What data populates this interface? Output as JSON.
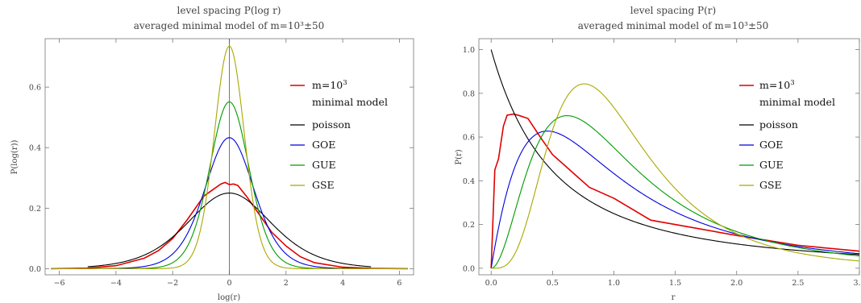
{
  "chart_data": [
    {
      "type": "line",
      "title": "level spacing P(log r)",
      "subtitle": "averaged minimal model of m=10³±50",
      "xlabel": "log(r)",
      "ylabel": "P(log(r))",
      "xlim": [
        -6.5,
        6.5
      ],
      "ylim": [
        -0.02,
        0.76
      ],
      "xticks": [
        "-6",
        "-4",
        "-2",
        "0",
        "2",
        "4",
        "6"
      ],
      "yticks": [
        "0.0",
        "0.2",
        "0.4",
        "0.6"
      ],
      "legend_position": "right",
      "legend": {
        "m_line1": "m=10",
        "m_sup": "3",
        "m_line2": "minimal model",
        "poisson": "poisson",
        "goe": "GOE",
        "gue": "GUE",
        "gse": "GSE"
      },
      "series": [
        {
          "key": "m",
          "color": "#e00000",
          "x": [
            -6.3,
            -5,
            -4,
            -3,
            -2.5,
            -2,
            -1.5,
            -1.2,
            -0.9,
            -0.6,
            -0.3,
            -0.15,
            0,
            0.15,
            0.3,
            0.6,
            0.9,
            1.2,
            1.5,
            2,
            2.5,
            3,
            4,
            5,
            6.3
          ],
          "y": [
            0.0,
            0.002,
            0.01,
            0.035,
            0.06,
            0.1,
            0.16,
            0.2,
            0.24,
            0.26,
            0.28,
            0.285,
            0.278,
            0.28,
            0.275,
            0.24,
            0.2,
            0.16,
            0.12,
            0.075,
            0.04,
            0.02,
            0.005,
            0.001,
            0.0
          ]
        },
        {
          "key": "poisson",
          "color": "#000000",
          "func": "poisson",
          "xrange": [
            -5,
            5
          ]
        },
        {
          "key": "goe",
          "color": "#0000dd",
          "func": "goe",
          "xrange": [
            -6.3,
            6.3
          ]
        },
        {
          "key": "gue",
          "color": "#009a00",
          "func": "gue",
          "xrange": [
            -6.3,
            6.3
          ]
        },
        {
          "key": "gse",
          "color": "#a8a800",
          "func": "gse",
          "xrange": [
            -6.3,
            6.3
          ]
        }
      ]
    },
    {
      "type": "line",
      "title": "level spacing P(r)",
      "subtitle": "averaged minimal model of m=10³±50",
      "xlabel": "r",
      "ylabel": "P(r)",
      "xlim": [
        -0.1,
        3.0
      ],
      "ylim": [
        -0.03,
        1.05
      ],
      "xticks": [
        "0.0",
        "0.5",
        "1.0",
        "1.5",
        "2.0",
        "2.5",
        "3.0"
      ],
      "yticks": [
        "0.0",
        "0.2",
        "0.4",
        "0.6",
        "0.8",
        "1.0"
      ],
      "legend_position": "right",
      "legend": {
        "m_line1": "m=10",
        "m_sup": "3",
        "m_line2": "minimal model",
        "poisson": "poisson",
        "goe": "GOE",
        "gue": "GUE",
        "gse": "GSE"
      },
      "series": [
        {
          "key": "m",
          "color": "#e00000",
          "x": [
            0.0,
            0.03,
            0.06,
            0.1,
            0.13,
            0.18,
            0.22,
            0.3,
            0.4,
            0.5,
            0.6,
            0.8,
            1.0,
            1.3,
            1.6,
            2.0,
            2.5,
            3.0
          ],
          "y": [
            0.0,
            0.45,
            0.5,
            0.65,
            0.7,
            0.705,
            0.7,
            0.685,
            0.6,
            0.52,
            0.47,
            0.37,
            0.32,
            0.22,
            0.19,
            0.15,
            0.105,
            0.078
          ]
        },
        {
          "key": "poisson",
          "color": "#000000",
          "func": "poisson",
          "xrange": [
            0,
            3
          ]
        },
        {
          "key": "goe",
          "color": "#0000dd",
          "func": "goe",
          "xrange": [
            0,
            3
          ]
        },
        {
          "key": "gue",
          "color": "#009a00",
          "func": "gue",
          "xrange": [
            0,
            3
          ]
        },
        {
          "key": "gse",
          "color": "#a8a800",
          "func": "gse",
          "xrange": [
            0,
            3
          ]
        }
      ]
    }
  ]
}
